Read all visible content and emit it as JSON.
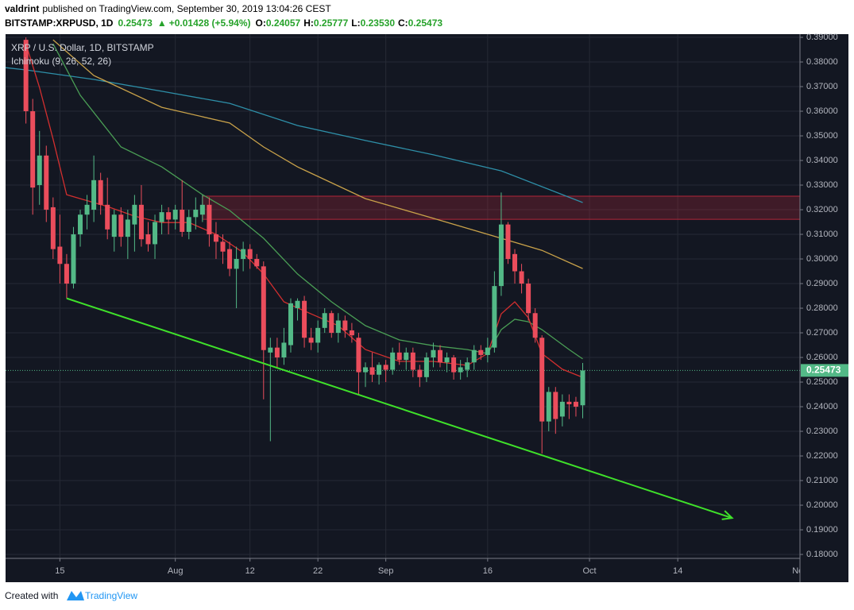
{
  "header": {
    "author": "valdrint",
    "published": "published on TradingView.com, September 30, 2019 13:04:26 CEST",
    "symbol": "BITSTAMP:XRPUSD, 1D",
    "last": "0.25473",
    "change": "+0.01428 (+5.94%)",
    "ohlc": [
      {
        "key": "O:",
        "value": "0.24057"
      },
      {
        "key": "H:",
        "value": "0.25777"
      },
      {
        "key": "L:",
        "value": "0.23530"
      },
      {
        "key": "C:",
        "value": "0.25473"
      }
    ]
  },
  "chart_data": {
    "type": "candlestick",
    "title": "XRP / U.S. Dollar, 1D, BITSTAMP",
    "subtitle": "Ichimoku (9, 26, 52, 26)",
    "up_color": "#53b987",
    "down_color": "#eb4d5c",
    "x": [
      "2019-07-10",
      "2019-07-11",
      "2019-07-12",
      "2019-07-13",
      "2019-07-14",
      "2019-07-15",
      "2019-07-16",
      "2019-07-17",
      "2019-07-18",
      "2019-07-19",
      "2019-07-20",
      "2019-07-21",
      "2019-07-22",
      "2019-07-23",
      "2019-07-24",
      "2019-07-25",
      "2019-07-26",
      "2019-07-27",
      "2019-07-28",
      "2019-07-29",
      "2019-07-30",
      "2019-07-31",
      "2019-08-01",
      "2019-08-02",
      "2019-08-03",
      "2019-08-04",
      "2019-08-05",
      "2019-08-06",
      "2019-08-07",
      "2019-08-08",
      "2019-08-09",
      "2019-08-10",
      "2019-08-11",
      "2019-08-12",
      "2019-08-13",
      "2019-08-14",
      "2019-08-15",
      "2019-08-16",
      "2019-08-17",
      "2019-08-18",
      "2019-08-19",
      "2019-08-20",
      "2019-08-21",
      "2019-08-22",
      "2019-08-23",
      "2019-08-24",
      "2019-08-25",
      "2019-08-26",
      "2019-08-27",
      "2019-08-28",
      "2019-08-29",
      "2019-08-30",
      "2019-08-31",
      "2019-09-01",
      "2019-09-02",
      "2019-09-03",
      "2019-09-04",
      "2019-09-05",
      "2019-09-06",
      "2019-09-07",
      "2019-09-08",
      "2019-09-09",
      "2019-09-10",
      "2019-09-11",
      "2019-09-12",
      "2019-09-13",
      "2019-09-14",
      "2019-09-15",
      "2019-09-16",
      "2019-09-17",
      "2019-09-18",
      "2019-09-19",
      "2019-09-20",
      "2019-09-21",
      "2019-09-22",
      "2019-09-23",
      "2019-09-24",
      "2019-09-25",
      "2019-09-26",
      "2019-09-27",
      "2019-09-28",
      "2019-09-29",
      "2019-09-30"
    ],
    "open": [
      0.389,
      0.36,
      0.33,
      0.342,
      0.321,
      0.305,
      0.298,
      0.29,
      0.31,
      0.318,
      0.32,
      0.332,
      0.322,
      0.309,
      0.318,
      0.309,
      0.314,
      0.322,
      0.31,
      0.306,
      0.315,
      0.319,
      0.316,
      0.32,
      0.311,
      0.317,
      0.318,
      0.322,
      0.31,
      0.307,
      0.304,
      0.296,
      0.3,
      0.304,
      0.3,
      0.297,
      0.262,
      0.264,
      0.26,
      0.265,
      0.28,
      0.283,
      0.268,
      0.266,
      0.272,
      0.278,
      0.27,
      0.275,
      0.271,
      0.268,
      0.254,
      0.256,
      0.253,
      0.257,
      0.255,
      0.262,
      0.259,
      0.262,
      0.255,
      0.252,
      0.26,
      0.263,
      0.258,
      0.26,
      0.254,
      0.255,
      0.258,
      0.263,
      0.261,
      0.264,
      0.289,
      0.314,
      0.302,
      0.295,
      0.29,
      0.278,
      0.268,
      0.234,
      0.246,
      0.236,
      0.242,
      0.242,
      0.24057
    ],
    "high": [
      0.39,
      0.365,
      0.352,
      0.346,
      0.325,
      0.318,
      0.302,
      0.313,
      0.32,
      0.326,
      0.342,
      0.335,
      0.333,
      0.32,
      0.321,
      0.32,
      0.326,
      0.33,
      0.315,
      0.318,
      0.322,
      0.321,
      0.322,
      0.332,
      0.32,
      0.325,
      0.326,
      0.325,
      0.315,
      0.31,
      0.307,
      0.305,
      0.307,
      0.306,
      0.302,
      0.299,
      0.268,
      0.268,
      0.272,
      0.284,
      0.284,
      0.285,
      0.272,
      0.275,
      0.28,
      0.279,
      0.278,
      0.277,
      0.274,
      0.27,
      0.258,
      0.262,
      0.258,
      0.259,
      0.264,
      0.266,
      0.264,
      0.264,
      0.257,
      0.262,
      0.266,
      0.265,
      0.262,
      0.261,
      0.259,
      0.26,
      0.265,
      0.265,
      0.268,
      0.295,
      0.327,
      0.315,
      0.304,
      0.298,
      0.292,
      0.28,
      0.269,
      0.248,
      0.248,
      0.245,
      0.245,
      0.244,
      0.25777
    ],
    "low": [
      0.355,
      0.318,
      0.322,
      0.315,
      0.3,
      0.29,
      0.284,
      0.288,
      0.305,
      0.312,
      0.315,
      0.318,
      0.308,
      0.303,
      0.305,
      0.3,
      0.303,
      0.305,
      0.303,
      0.3,
      0.31,
      0.31,
      0.312,
      0.309,
      0.308,
      0.312,
      0.315,
      0.305,
      0.3,
      0.298,
      0.293,
      0.28,
      0.295,
      0.296,
      0.296,
      0.243,
      0.226,
      0.256,
      0.257,
      0.262,
      0.275,
      0.264,
      0.263,
      0.262,
      0.27,
      0.268,
      0.266,
      0.268,
      0.266,
      0.245,
      0.248,
      0.25,
      0.249,
      0.25,
      0.253,
      0.257,
      0.255,
      0.252,
      0.248,
      0.25,
      0.256,
      0.256,
      0.254,
      0.251,
      0.251,
      0.252,
      0.255,
      0.259,
      0.258,
      0.262,
      0.285,
      0.298,
      0.29,
      0.286,
      0.275,
      0.266,
      0.221,
      0.23,
      0.229,
      0.232,
      0.235,
      0.236,
      0.2353
    ],
    "close": [
      0.36,
      0.329,
      0.342,
      0.32,
      0.304,
      0.298,
      0.29,
      0.31,
      0.318,
      0.322,
      0.332,
      0.322,
      0.312,
      0.318,
      0.309,
      0.316,
      0.322,
      0.308,
      0.306,
      0.315,
      0.319,
      0.316,
      0.32,
      0.311,
      0.317,
      0.32,
      0.322,
      0.31,
      0.307,
      0.303,
      0.296,
      0.3,
      0.304,
      0.3,
      0.297,
      0.263,
      0.264,
      0.26,
      0.266,
      0.282,
      0.283,
      0.268,
      0.266,
      0.272,
      0.278,
      0.27,
      0.275,
      0.271,
      0.269,
      0.254,
      0.256,
      0.253,
      0.257,
      0.255,
      0.262,
      0.259,
      0.262,
      0.255,
      0.252,
      0.26,
      0.263,
      0.258,
      0.26,
      0.254,
      0.256,
      0.258,
      0.263,
      0.261,
      0.264,
      0.289,
      0.314,
      0.3,
      0.295,
      0.29,
      0.278,
      0.268,
      0.234,
      0.246,
      0.235,
      0.242,
      0.241,
      0.24,
      0.25473
    ],
    "lines": [
      {
        "color": "#2e8fa8",
        "x": [
          "2019-07-07",
          "2019-07-10",
          "2019-07-20",
          "2019-07-30",
          "2019-08-09",
          "2019-08-19",
          "2019-08-29",
          "2019-09-08",
          "2019-09-18",
          "2019-09-30"
        ],
        "values": [
          0.3777,
          0.3768,
          0.3729,
          0.3681,
          0.3632,
          0.3542,
          0.3481,
          0.3423,
          0.3358,
          0.3229
        ]
      },
      {
        "color": "#c9a24a",
        "x": [
          "2019-07-14",
          "2019-07-20",
          "2019-07-30",
          "2019-08-09",
          "2019-08-14",
          "2019-08-19",
          "2019-08-29",
          "2019-09-08",
          "2019-09-18",
          "2019-09-24",
          "2019-09-30"
        ],
        "values": [
          0.389,
          0.3745,
          0.3616,
          0.3552,
          0.3455,
          0.3374,
          0.3245,
          0.3165,
          0.3084,
          0.3035,
          0.2961
        ]
      },
      {
        "color": "#4a9e55",
        "x": [
          "2019-07-14",
          "2019-07-18",
          "2019-07-24",
          "2019-07-30",
          "2019-08-05",
          "2019-08-09",
          "2019-08-14",
          "2019-08-19",
          "2019-08-24",
          "2019-08-29",
          "2019-09-03",
          "2019-09-08",
          "2019-09-13",
          "2019-09-16",
          "2019-09-18",
          "2019-09-20",
          "2019-09-22",
          "2019-09-24",
          "2019-09-28",
          "2019-09-30"
        ],
        "values": [
          0.3874,
          0.3665,
          0.3455,
          0.3374,
          0.3261,
          0.3197,
          0.3084,
          0.2939,
          0.2826,
          0.2729,
          0.2671,
          0.2648,
          0.2632,
          0.2616,
          0.2713,
          0.2755,
          0.2745,
          0.2713,
          0.2632,
          0.2594
        ]
      },
      {
        "color": "#d32f2f",
        "x": [
          "2019-07-10",
          "2019-07-12",
          "2019-07-14",
          "2019-07-16",
          "2019-07-18",
          "2019-07-22",
          "2019-07-26",
          "2019-07-30",
          "2019-08-03",
          "2019-08-07",
          "2019-08-11",
          "2019-08-14",
          "2019-08-17",
          "2019-08-21",
          "2019-08-25",
          "2019-08-29",
          "2019-09-03",
          "2019-09-08",
          "2019-09-13",
          "2019-09-16",
          "2019-09-18",
          "2019-09-20",
          "2019-09-22",
          "2019-09-24",
          "2019-09-27",
          "2019-09-30"
        ],
        "values": [
          0.3874,
          0.3697,
          0.3487,
          0.3261,
          0.3245,
          0.3213,
          0.3174,
          0.3148,
          0.3148,
          0.31,
          0.3026,
          0.2939,
          0.2826,
          0.2777,
          0.2729,
          0.2632,
          0.2584,
          0.2584,
          0.2568,
          0.2616,
          0.2777,
          0.2826,
          0.2761,
          0.2616,
          0.2552,
          0.2519
        ]
      }
    ],
    "zones": [
      {
        "x_start": "2019-08-05",
        "ylim": [
          0.3161,
          0.3255
        ],
        "color": "#b2263a"
      }
    ],
    "trendline": {
      "x": [
        "2019-07-16",
        "2019-10-22"
      ],
      "values": [
        0.284,
        0.1948
      ],
      "color": "#3fe12a"
    },
    "last_price": {
      "value": 0.25473,
      "label": "0.25473"
    },
    "xlim": [
      "2019-07-07",
      "2019-11-01"
    ],
    "xticks": [
      {
        "value": "2019-07-15",
        "label": "15"
      },
      {
        "value": "2019-08-01",
        "label": "Aug"
      },
      {
        "value": "2019-08-12",
        "label": "12"
      },
      {
        "value": "2019-08-22",
        "label": "22"
      },
      {
        "value": "2019-09-01",
        "label": "Sep"
      },
      {
        "value": "2019-09-16",
        "label": "16"
      },
      {
        "value": "2019-10-01",
        "label": "Oct"
      },
      {
        "value": "2019-10-14",
        "label": "14"
      },
      {
        "value": "2019-11-01",
        "label": "Nov"
      }
    ],
    "ylim": [
      0.1784,
      0.3913
    ],
    "yticks": [
      {
        "value": 0.18,
        "label": "0.18000"
      },
      {
        "value": 0.19,
        "label": "0.19000"
      },
      {
        "value": 0.2,
        "label": "0.20000"
      },
      {
        "value": 0.21,
        "label": "0.21000"
      },
      {
        "value": 0.22,
        "label": "0.22000"
      },
      {
        "value": 0.23,
        "label": "0.23000"
      },
      {
        "value": 0.24,
        "label": "0.24000"
      },
      {
        "value": 0.25,
        "label": "0.25000"
      },
      {
        "value": 0.26,
        "label": "0.26000"
      },
      {
        "value": 0.27,
        "label": "0.27000"
      },
      {
        "value": 0.28,
        "label": "0.28000"
      },
      {
        "value": 0.29,
        "label": "0.29000"
      },
      {
        "value": 0.3,
        "label": "0.30000"
      },
      {
        "value": 0.31,
        "label": "0.31000"
      },
      {
        "value": 0.32,
        "label": "0.32000"
      },
      {
        "value": 0.33,
        "label": "0.33000"
      },
      {
        "value": 0.34,
        "label": "0.34000"
      },
      {
        "value": 0.35,
        "label": "0.35000"
      },
      {
        "value": 0.36,
        "label": "0.36000"
      },
      {
        "value": 0.37,
        "label": "0.37000"
      },
      {
        "value": 0.38,
        "label": "0.38000"
      },
      {
        "value": 0.39,
        "label": "0.39000"
      }
    ],
    "grid": true
  },
  "footer": {
    "created": "Created with",
    "brand": "TradingView"
  }
}
